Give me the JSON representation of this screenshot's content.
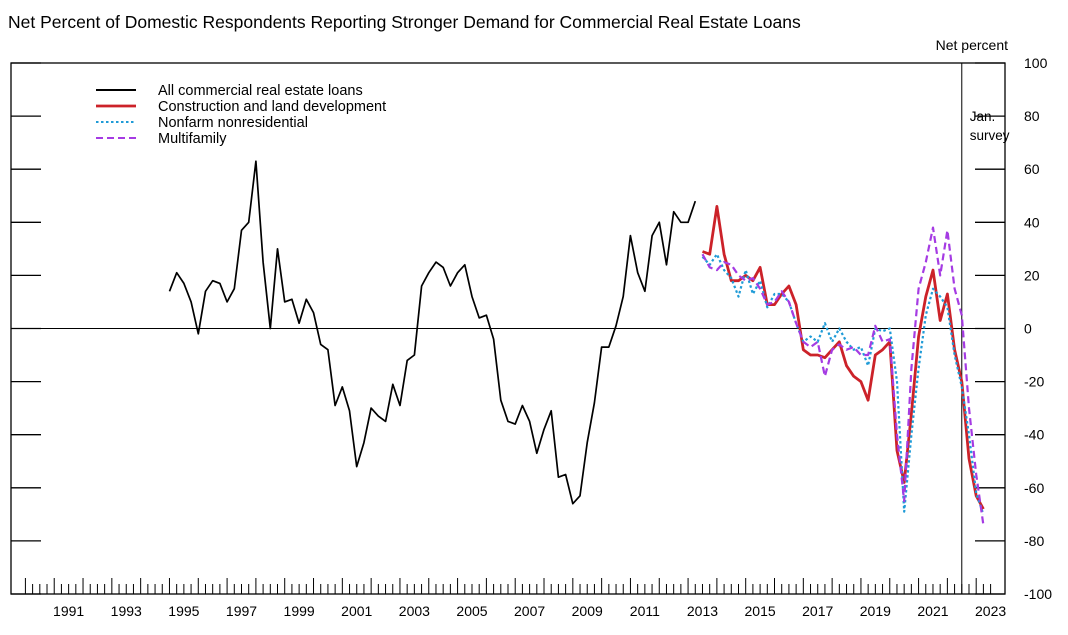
{
  "chart_data": {
    "type": "line",
    "title": "Net Percent of Domestic Respondents Reporting Stronger Demand for Commercial Real Estate Loans",
    "ylabel": "Net percent",
    "xlim": [
      1989.5,
      2024.0
    ],
    "ylim": [
      -100,
      100
    ],
    "yticks": [
      100,
      80,
      60,
      40,
      20,
      0,
      -20,
      -40,
      -60,
      -80,
      -100
    ],
    "xtick_labels": [
      "1991",
      "1993",
      "1995",
      "1997",
      "1999",
      "2001",
      "2003",
      "2005",
      "2007",
      "2009",
      "2011",
      "2013",
      "2015",
      "2017",
      "2019",
      "2021",
      "2023"
    ],
    "xtick_values": [
      1991,
      1993,
      1995,
      1997,
      1999,
      2001,
      2003,
      2005,
      2007,
      2009,
      2011,
      2013,
      2015,
      2017,
      2019,
      2021,
      2023
    ],
    "minor_tick_start": 1990.0,
    "minor_tick_end": 2023.5,
    "annotation": {
      "line1": "Jan.",
      "line2": "survey",
      "x": 2022.5
    },
    "legend_position": "top-left",
    "series": [
      {
        "name": "All commercial real estate loans",
        "color": "#000000",
        "dash": "",
        "points": [
          [
            1995.0,
            14
          ],
          [
            1995.25,
            21
          ],
          [
            1995.5,
            17
          ],
          [
            1995.75,
            10
          ],
          [
            1996.0,
            -2
          ],
          [
            1996.25,
            14
          ],
          [
            1996.5,
            18
          ],
          [
            1996.75,
            17
          ],
          [
            1997.0,
            10
          ],
          [
            1997.25,
            15
          ],
          [
            1997.5,
            37
          ],
          [
            1997.75,
            40
          ],
          [
            1998.0,
            63
          ],
          [
            1998.25,
            25
          ],
          [
            1998.5,
            0
          ],
          [
            1998.75,
            30
          ],
          [
            1999.0,
            10
          ],
          [
            1999.25,
            11
          ],
          [
            1999.5,
            2
          ],
          [
            1999.75,
            11
          ],
          [
            2000.0,
            6
          ],
          [
            2000.25,
            -6
          ],
          [
            2000.5,
            -8
          ],
          [
            2000.75,
            -29
          ],
          [
            2001.0,
            -22
          ],
          [
            2001.25,
            -31
          ],
          [
            2001.5,
            -52
          ],
          [
            2001.75,
            -43
          ],
          [
            2002.0,
            -30
          ],
          [
            2002.25,
            -33
          ],
          [
            2002.5,
            -35
          ],
          [
            2002.75,
            -21
          ],
          [
            2003.0,
            -29
          ],
          [
            2003.25,
            -12
          ],
          [
            2003.5,
            -10
          ],
          [
            2003.75,
            16
          ],
          [
            2004.0,
            21
          ],
          [
            2004.25,
            25
          ],
          [
            2004.5,
            23
          ],
          [
            2004.75,
            16
          ],
          [
            2005.0,
            21
          ],
          [
            2005.25,
            24
          ],
          [
            2005.5,
            12
          ],
          [
            2005.75,
            4
          ],
          [
            2006.0,
            5
          ],
          [
            2006.25,
            -4
          ],
          [
            2006.5,
            -27
          ],
          [
            2006.75,
            -35
          ],
          [
            2007.0,
            -36
          ],
          [
            2007.25,
            -29
          ],
          [
            2007.5,
            -35
          ],
          [
            2007.75,
            -47
          ],
          [
            2008.0,
            -38
          ],
          [
            2008.25,
            -31
          ],
          [
            2008.5,
            -56
          ],
          [
            2008.75,
            -55
          ],
          [
            2009.0,
            -66
          ],
          [
            2009.25,
            -63
          ],
          [
            2009.5,
            -43
          ],
          [
            2009.75,
            -28
          ],
          [
            2010.0,
            -7
          ],
          [
            2010.25,
            -7
          ],
          [
            2010.5,
            1
          ],
          [
            2010.75,
            12
          ],
          [
            2011.0,
            35
          ],
          [
            2011.25,
            21
          ],
          [
            2011.5,
            14
          ],
          [
            2011.75,
            35
          ],
          [
            2012.0,
            40
          ],
          [
            2012.25,
            24
          ],
          [
            2012.5,
            44
          ],
          [
            2012.75,
            40
          ],
          [
            2013.0,
            40
          ],
          [
            2013.25,
            48
          ]
        ]
      },
      {
        "name": "Construction and land development",
        "color": "#cc2229",
        "dash": "",
        "points": [
          [
            2013.5,
            29
          ],
          [
            2013.75,
            28
          ],
          [
            2014.0,
            46
          ],
          [
            2014.25,
            28
          ],
          [
            2014.5,
            18
          ],
          [
            2014.75,
            18
          ],
          [
            2015.0,
            20
          ],
          [
            2015.25,
            18
          ],
          [
            2015.5,
            23
          ],
          [
            2015.75,
            9
          ],
          [
            2016.0,
            9
          ],
          [
            2016.25,
            13
          ],
          [
            2016.5,
            16
          ],
          [
            2016.75,
            9
          ],
          [
            2017.0,
            -8
          ],
          [
            2017.25,
            -10
          ],
          [
            2017.5,
            -10
          ],
          [
            2017.75,
            -11
          ],
          [
            2018.0,
            -8
          ],
          [
            2018.25,
            -5
          ],
          [
            2018.5,
            -14
          ],
          [
            2018.75,
            -18
          ],
          [
            2019.0,
            -20
          ],
          [
            2019.25,
            -27
          ],
          [
            2019.5,
            -10
          ],
          [
            2019.75,
            -8
          ],
          [
            2020.0,
            -5
          ],
          [
            2020.25,
            -46
          ],
          [
            2020.5,
            -58
          ],
          [
            2020.75,
            -32
          ],
          [
            2021.0,
            -3
          ],
          [
            2021.25,
            12
          ],
          [
            2021.5,
            22
          ],
          [
            2021.75,
            3
          ],
          [
            2022.0,
            13
          ],
          [
            2022.25,
            -8
          ],
          [
            2022.5,
            -20
          ],
          [
            2022.75,
            -49
          ],
          [
            2023.0,
            -63
          ],
          [
            2023.25,
            -68
          ]
        ]
      },
      {
        "name": "Nonfarm nonresidential",
        "color": "#1f9bd7",
        "dash": "2.5,2.5",
        "points": [
          [
            2013.5,
            27
          ],
          [
            2013.75,
            24
          ],
          [
            2014.0,
            28
          ],
          [
            2014.25,
            22
          ],
          [
            2014.5,
            19
          ],
          [
            2014.75,
            12
          ],
          [
            2015.0,
            22
          ],
          [
            2015.25,
            13
          ],
          [
            2015.5,
            18
          ],
          [
            2015.75,
            8
          ],
          [
            2016.0,
            13
          ],
          [
            2016.25,
            13
          ],
          [
            2016.5,
            10
          ],
          [
            2016.75,
            2
          ],
          [
            2017.0,
            -5
          ],
          [
            2017.25,
            -3
          ],
          [
            2017.5,
            -5
          ],
          [
            2017.75,
            2
          ],
          [
            2018.0,
            -5
          ],
          [
            2018.25,
            0
          ],
          [
            2018.5,
            -5
          ],
          [
            2018.75,
            -8
          ],
          [
            2019.0,
            -7
          ],
          [
            2019.25,
            -14
          ],
          [
            2019.5,
            0
          ],
          [
            2019.75,
            -1
          ],
          [
            2020.0,
            0
          ],
          [
            2020.25,
            -20
          ],
          [
            2020.5,
            -69
          ],
          [
            2020.75,
            -40
          ],
          [
            2021.0,
            -15
          ],
          [
            2021.25,
            5
          ],
          [
            2021.5,
            15
          ],
          [
            2021.75,
            12
          ],
          [
            2022.0,
            8
          ],
          [
            2022.25,
            -10
          ],
          [
            2022.5,
            -22
          ],
          [
            2022.75,
            -40
          ],
          [
            2023.0,
            -62
          ],
          [
            2023.25,
            -70
          ]
        ]
      },
      {
        "name": "Multifamily",
        "color": "#a53be3",
        "dash": "7,4",
        "points": [
          [
            2013.5,
            28
          ],
          [
            2013.75,
            23
          ],
          [
            2014.0,
            22
          ],
          [
            2014.25,
            25
          ],
          [
            2014.5,
            24
          ],
          [
            2014.75,
            20
          ],
          [
            2015.0,
            18
          ],
          [
            2015.25,
            19
          ],
          [
            2015.5,
            15
          ],
          [
            2015.75,
            9
          ],
          [
            2016.0,
            10
          ],
          [
            2016.25,
            14
          ],
          [
            2016.5,
            10
          ],
          [
            2016.75,
            2
          ],
          [
            2017.0,
            -5
          ],
          [
            2017.25,
            -7
          ],
          [
            2017.5,
            -5
          ],
          [
            2017.75,
            -18
          ],
          [
            2018.0,
            -8
          ],
          [
            2018.25,
            -6
          ],
          [
            2018.5,
            -8
          ],
          [
            2018.75,
            -7
          ],
          [
            2019.0,
            -10
          ],
          [
            2019.25,
            -10
          ],
          [
            2019.5,
            1
          ],
          [
            2019.75,
            -5
          ],
          [
            2020.0,
            -4
          ],
          [
            2020.25,
            -40
          ],
          [
            2020.5,
            -65
          ],
          [
            2020.75,
            -15
          ],
          [
            2021.0,
            15
          ],
          [
            2021.25,
            25
          ],
          [
            2021.5,
            38
          ],
          [
            2021.75,
            20
          ],
          [
            2022.0,
            37
          ],
          [
            2022.25,
            15
          ],
          [
            2022.5,
            5
          ],
          [
            2022.75,
            -30
          ],
          [
            2023.0,
            -55
          ],
          [
            2023.25,
            -74
          ]
        ]
      }
    ]
  }
}
